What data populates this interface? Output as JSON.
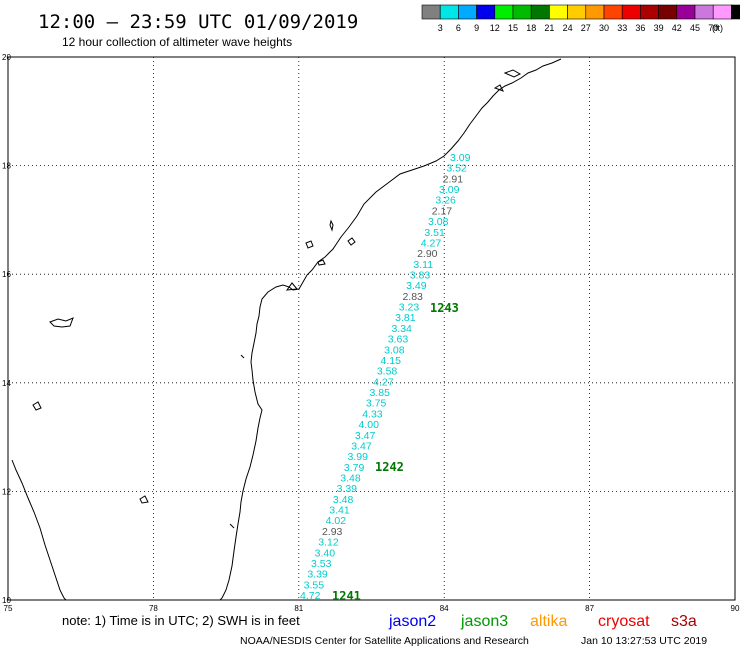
{
  "header": {
    "title": "12:00 – 23:59 UTC 01/09/2019",
    "subtitle": "12 hour collection of altimeter wave heights"
  },
  "legend": {
    "unit": "(ft)",
    "items": [
      {
        "label": "",
        "color": "#808080"
      },
      {
        "label": "3",
        "color": "#00e5e5"
      },
      {
        "label": "6",
        "color": "#00aaff"
      },
      {
        "label": "9",
        "color": "#0000ee"
      },
      {
        "label": "12",
        "color": "#00ee00"
      },
      {
        "label": "15",
        "color": "#00bb00"
      },
      {
        "label": "18",
        "color": "#007700"
      },
      {
        "label": "21",
        "color": "#ffff00"
      },
      {
        "label": "24",
        "color": "#ffcc00"
      },
      {
        "label": "27",
        "color": "#ff9900"
      },
      {
        "label": "30",
        "color": "#ff4400"
      },
      {
        "label": "33",
        "color": "#ee0000"
      },
      {
        "label": "36",
        "color": "#aa0000"
      },
      {
        "label": "39",
        "color": "#770000"
      },
      {
        "label": "42",
        "color": "#990099"
      },
      {
        "label": "45",
        "color": "#cc77dd"
      },
      {
        "label": "70",
        "color": "#ff99ff"
      },
      {
        "label": "",
        "color": "#000000"
      }
    ]
  },
  "axes": {
    "lon": {
      "min": 75,
      "max": 90,
      "ticks": [
        "75",
        "78",
        "81",
        "84",
        "87",
        "90"
      ],
      "tick_values": [
        75,
        78,
        81,
        84,
        87,
        90
      ]
    },
    "lat": {
      "min": 10,
      "max": 20,
      "ticks": [
        "10",
        "12",
        "14",
        "16",
        "18",
        "20"
      ],
      "tick_values": [
        10,
        12,
        14,
        16,
        18,
        20
      ]
    }
  },
  "track": {
    "color_normal": "#00cccc",
    "color_low": "#555555",
    "values": [
      {
        "v": "3.09",
        "low": false
      },
      {
        "v": "3.52",
        "low": false
      },
      {
        "v": "2.91",
        "low": true
      },
      {
        "v": "3.09",
        "low": false
      },
      {
        "v": "3.26",
        "low": false
      },
      {
        "v": "2.17",
        "low": true
      },
      {
        "v": "3.08",
        "low": false
      },
      {
        "v": "3.51",
        "low": false
      },
      {
        "v": "4.27",
        "low": false
      },
      {
        "v": "2.90",
        "low": true
      },
      {
        "v": "3.11",
        "low": false
      },
      {
        "v": "3.83",
        "low": false
      },
      {
        "v": "3.49",
        "low": false
      },
      {
        "v": "2.83",
        "low": true
      },
      {
        "v": "3.23",
        "low": false
      },
      {
        "v": "3.81",
        "low": false
      },
      {
        "v": "3.34",
        "low": false
      },
      {
        "v": "3.63",
        "low": false
      },
      {
        "v": "3.08",
        "low": false
      },
      {
        "v": "4.15",
        "low": false
      },
      {
        "v": "3.58",
        "low": false
      },
      {
        "v": "4.27",
        "low": false
      },
      {
        "v": "3.85",
        "low": false
      },
      {
        "v": "3.75",
        "low": false
      },
      {
        "v": "4.33",
        "low": false
      },
      {
        "v": "4.00",
        "low": false
      },
      {
        "v": "3.47",
        "low": false
      },
      {
        "v": "3.47",
        "low": false
      },
      {
        "v": "3.99",
        "low": false
      },
      {
        "v": "3.79",
        "low": false
      },
      {
        "v": "3.48",
        "low": false
      },
      {
        "v": "3.39",
        "low": false
      },
      {
        "v": "3.48",
        "low": false
      },
      {
        "v": "3.41",
        "low": false
      },
      {
        "v": "4.02",
        "low": false
      },
      {
        "v": "2.93",
        "low": true
      },
      {
        "v": "3.12",
        "low": false
      },
      {
        "v": "3.40",
        "low": false
      },
      {
        "v": "3.53",
        "low": false
      },
      {
        "v": "3.39",
        "low": false
      },
      {
        "v": "3.55",
        "low": false
      },
      {
        "v": "4.72",
        "low": false
      }
    ],
    "time_labels": [
      {
        "text": "1243",
        "color": "#007700"
      },
      {
        "text": "1242",
        "color": "#007700"
      },
      {
        "text": "1241",
        "color": "#007700"
      }
    ]
  },
  "footer": {
    "note": "note: 1) Time is in UTC; 2) SWH is in feet",
    "satellites": [
      {
        "name": "jason2",
        "color": "#0000ee"
      },
      {
        "name": "jason3",
        "color": "#009900"
      },
      {
        "name": "altika",
        "color": "#ff9900"
      },
      {
        "name": "cryosat",
        "color": "#ee0000"
      },
      {
        "name": "s3a",
        "color": "#aa0000"
      }
    ],
    "credit": "NOAA/NESDIS Center for Satellite Applications and Research",
    "timestamp": "Jan 10 13:27:53 UTC 2019"
  }
}
